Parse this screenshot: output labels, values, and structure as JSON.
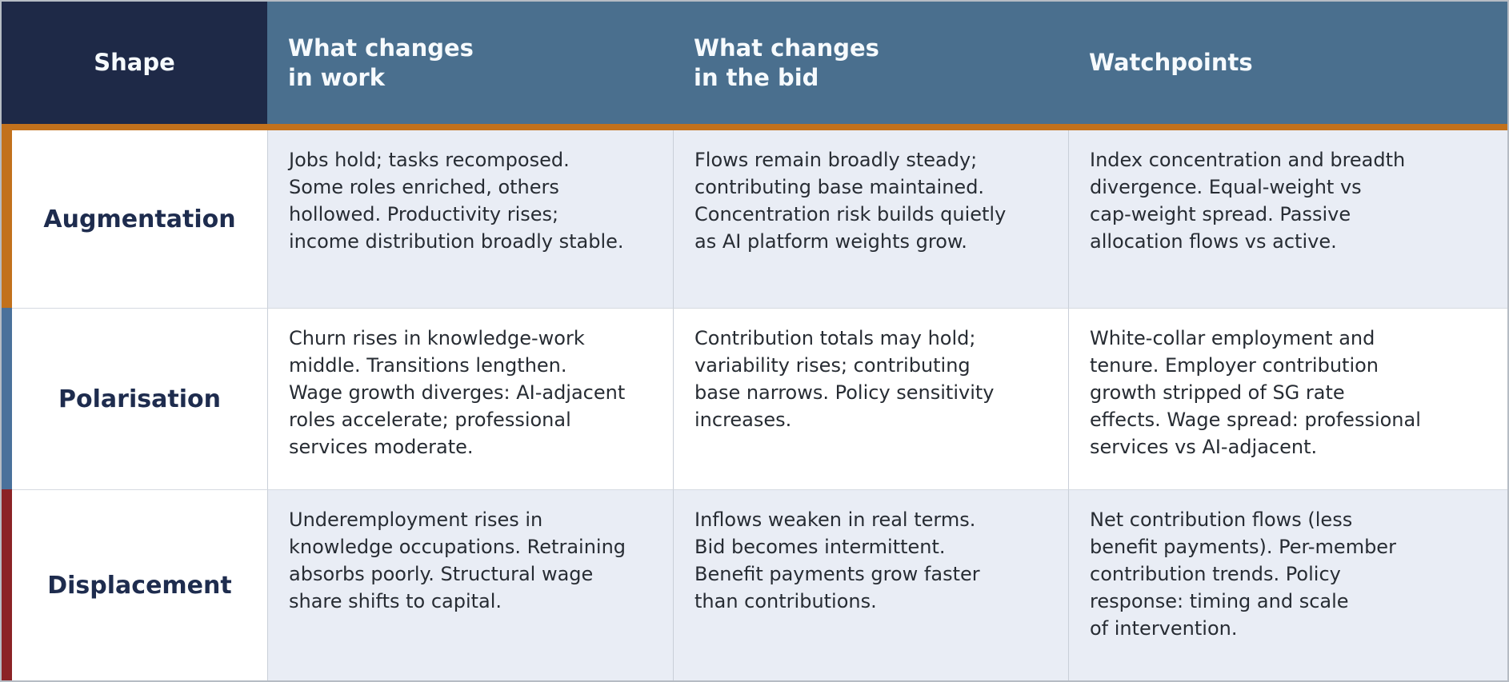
{
  "colors": {
    "header_shape_bg": "#1e2947",
    "header_bg": "#4a6f8e",
    "header_underline": "#c2711c",
    "accent_augmentation": "#c2711c",
    "accent_polarisation": "#4a719b",
    "accent_displacement": "#8b2326",
    "tint_cell_bg": "#e9edf5",
    "label_text": "#1e2c4e",
    "body_text": "#272c33"
  },
  "table": {
    "header": {
      "shape": "Shape",
      "work": "What changes\nin work",
      "bid": "What changes\nin the bid",
      "watchpoints": "Watchpoints"
    },
    "rows": [
      {
        "shape": "Augmentation",
        "accent_color": "#c2711c",
        "work": "Jobs hold; tasks recomposed.\nSome roles enriched, others\nhollowed. Productivity rises;\nincome distribution broadly stable.",
        "bid": "Flows remain broadly steady;\ncontributing base maintained.\nConcentration risk builds quietly\nas AI platform weights grow.",
        "watchpoints": "Index concentration and breadth\ndivergence. Equal-weight vs\ncap-weight spread. Passive\nallocation flows vs active."
      },
      {
        "shape": "Polarisation",
        "accent_color": "#4a719b",
        "work": "Churn rises in knowledge-work\nmiddle. Transitions lengthen.\nWage growth diverges: AI-adjacent\nroles accelerate; professional\nservices moderate.",
        "bid": "Contribution totals may hold;\nvariability rises; contributing\nbase narrows. Policy sensitivity\nincreases.",
        "watchpoints": "White-collar employment and\ntenure. Employer contribution\ngrowth stripped of SG rate\neffects. Wage spread: professional\nservices vs AI-adjacent."
      },
      {
        "shape": "Displacement",
        "accent_color": "#8b2326",
        "work": "Underemployment rises in\nknowledge occupations. Retraining\nabsorbs poorly. Structural wage\nshare shifts to capital.",
        "bid": "Inflows weaken in real terms.\nBid becomes intermittent.\nBenefit payments grow faster\nthan contributions.",
        "watchpoints": "Net contribution flows (less\nbenefit payments). Per-member\ncontribution trends. Policy\nresponse: timing and scale\nof intervention."
      }
    ]
  }
}
